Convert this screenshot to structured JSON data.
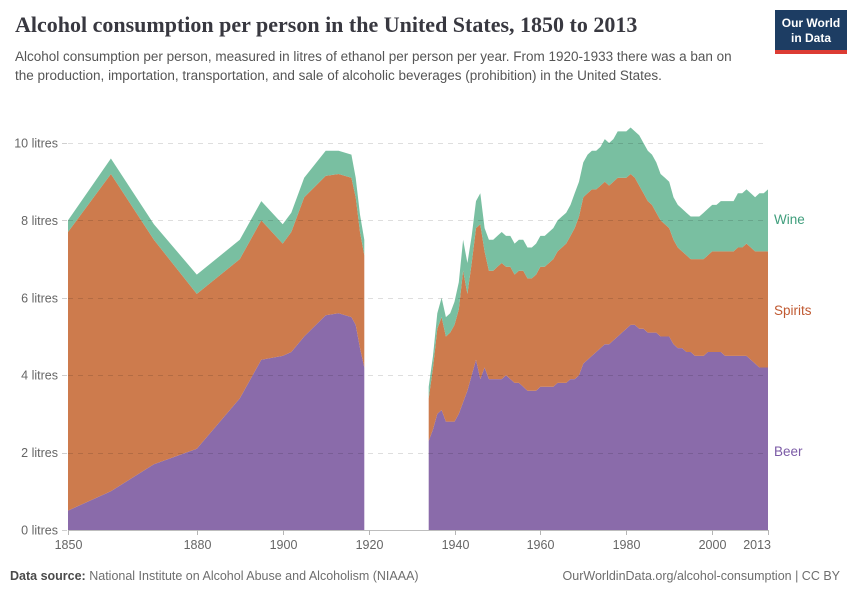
{
  "header": {
    "title": "Alcohol consumption per person in the United States, 1850 to 2013",
    "subtitle": "Alcohol consumption per person, measured in litres of ethanol per person per year. From 1920-1933 there was a ban on the production, importation, transportation, and sale of alcoholic beverages (prohibition) in the United States."
  },
  "logo": {
    "line1": "Our World",
    "line2": "in Data",
    "bg_color": "#1d3d63",
    "bar_color": "#dc3c34"
  },
  "footer": {
    "source_label": "Data source:",
    "source_value": "National Institute on Alcohol Abuse and Alcoholism (NIAAA)",
    "credit": "OurWorldinData.org/alcohol-consumption | CC BY"
  },
  "chart_data": {
    "type": "area",
    "stacked": true,
    "title": "Alcohol consumption per person in the United States, 1850 to 2013",
    "unit": "litres of ethanol per person per year",
    "x_domain": [
      1850,
      2013
    ],
    "y_domain": [
      0,
      10
    ],
    "x_ticks": [
      1850,
      1880,
      1900,
      1920,
      1940,
      1960,
      1980,
      2000,
      2013
    ],
    "y_ticks": [
      {
        "value": 0,
        "label": "0 litres"
      },
      {
        "value": 2,
        "label": "2 litres"
      },
      {
        "value": 4,
        "label": "4 litres"
      },
      {
        "value": 6,
        "label": "6 litres"
      },
      {
        "value": 8,
        "label": "8 litres"
      },
      {
        "value": 10,
        "label": "10 litres"
      }
    ],
    "grid": "dashed",
    "legend_position": "right",
    "data_gap": {
      "from": 1920,
      "to": 1933,
      "reason": "prohibition — no data shown"
    },
    "series": [
      {
        "name": "Beer",
        "fill": "#8a6baa",
        "label_color": "#7b5aa6"
      },
      {
        "name": "Spirits",
        "fill": "#cd7b4d",
        "label_color": "#c05a32"
      },
      {
        "name": "Wine",
        "fill": "#79bfa1",
        "label_color": "#3f9e7c"
      }
    ],
    "segments": [
      {
        "years": [
          1850,
          1860,
          1870,
          1880,
          1890,
          1895,
          1900,
          1902,
          1905,
          1910,
          1913,
          1916,
          1917,
          1918,
          1919
        ],
        "values": {
          "Beer": [
            0.5,
            1.0,
            1.7,
            2.1,
            3.4,
            4.4,
            4.5,
            4.6,
            5.0,
            5.55,
            5.6,
            5.5,
            5.3,
            4.7,
            4.2
          ],
          "Spirits": [
            7.2,
            8.2,
            5.8,
            4.0,
            3.6,
            3.6,
            2.9,
            3.1,
            3.6,
            3.6,
            3.6,
            3.6,
            3.3,
            3.0,
            2.9
          ],
          "Wine": [
            0.3,
            0.4,
            0.4,
            0.5,
            0.5,
            0.5,
            0.5,
            0.5,
            0.5,
            0.65,
            0.6,
            0.6,
            0.5,
            0.45,
            0.4
          ]
        }
      },
      {
        "years": [
          1934,
          1935,
          1936,
          1937,
          1938,
          1939,
          1940,
          1941,
          1942,
          1943,
          1944,
          1945,
          1946,
          1947,
          1948,
          1949,
          1950,
          1951,
          1952,
          1953,
          1954,
          1955,
          1956,
          1957,
          1958,
          1959,
          1960,
          1961,
          1962,
          1963,
          1964,
          1965,
          1966,
          1967,
          1968,
          1969,
          1970,
          1971,
          1972,
          1973,
          1974,
          1975,
          1976,
          1977,
          1978,
          1979,
          1980,
          1981,
          1982,
          1983,
          1984,
          1985,
          1986,
          1987,
          1988,
          1989,
          1990,
          1991,
          1992,
          1993,
          1994,
          1995,
          1996,
          1997,
          1998,
          1999,
          2000,
          2001,
          2002,
          2003,
          2004,
          2005,
          2006,
          2007,
          2008,
          2009,
          2010,
          2011,
          2012,
          2013
        ],
        "values": {
          "Beer": [
            2.3,
            2.6,
            3.0,
            3.1,
            2.8,
            2.8,
            2.8,
            3.0,
            3.3,
            3.6,
            4.0,
            4.4,
            3.9,
            4.2,
            3.9,
            3.9,
            3.9,
            3.9,
            4.0,
            3.9,
            3.8,
            3.8,
            3.7,
            3.6,
            3.6,
            3.6,
            3.7,
            3.7,
            3.7,
            3.7,
            3.8,
            3.8,
            3.8,
            3.9,
            3.9,
            4.0,
            4.3,
            4.4,
            4.5,
            4.6,
            4.7,
            4.8,
            4.8,
            4.9,
            5.0,
            5.1,
            5.2,
            5.3,
            5.3,
            5.2,
            5.2,
            5.1,
            5.1,
            5.1,
            5.0,
            5.0,
            5.0,
            4.8,
            4.7,
            4.7,
            4.6,
            4.6,
            4.5,
            4.5,
            4.5,
            4.6,
            4.6,
            4.6,
            4.6,
            4.5,
            4.5,
            4.5,
            4.5,
            4.5,
            4.5,
            4.4,
            4.3,
            4.2,
            4.2,
            4.2
          ],
          "Spirits": [
            1.1,
            1.6,
            2.2,
            2.4,
            2.2,
            2.3,
            2.5,
            2.7,
            3.4,
            2.5,
            2.9,
            3.4,
            4.0,
            3.0,
            2.8,
            2.8,
            2.9,
            3.0,
            2.8,
            2.9,
            2.8,
            2.9,
            3.0,
            2.9,
            2.9,
            3.0,
            3.1,
            3.1,
            3.2,
            3.3,
            3.4,
            3.5,
            3.6,
            3.7,
            3.9,
            4.1,
            4.3,
            4.3,
            4.3,
            4.2,
            4.2,
            4.2,
            4.1,
            4.1,
            4.1,
            4.0,
            3.9,
            3.9,
            3.8,
            3.7,
            3.5,
            3.4,
            3.3,
            3.1,
            3.0,
            2.9,
            2.8,
            2.7,
            2.6,
            2.5,
            2.5,
            2.4,
            2.5,
            2.5,
            2.5,
            2.5,
            2.6,
            2.6,
            2.6,
            2.7,
            2.7,
            2.7,
            2.8,
            2.8,
            2.9,
            2.9,
            2.9,
            3.0,
            3.0,
            3.0
          ],
          "Wine": [
            0.3,
            0.3,
            0.4,
            0.5,
            0.5,
            0.5,
            0.6,
            0.7,
            0.8,
            0.8,
            0.7,
            0.7,
            0.8,
            0.6,
            0.8,
            0.8,
            0.8,
            0.8,
            0.8,
            0.8,
            0.8,
            0.8,
            0.8,
            0.8,
            0.8,
            0.8,
            0.8,
            0.8,
            0.8,
            0.8,
            0.8,
            0.8,
            0.8,
            0.8,
            0.9,
            0.9,
            0.9,
            1.0,
            1.0,
            1.0,
            1.0,
            1.1,
            1.1,
            1.1,
            1.2,
            1.2,
            1.2,
            1.2,
            1.2,
            1.3,
            1.3,
            1.3,
            1.3,
            1.3,
            1.2,
            1.2,
            1.2,
            1.1,
            1.1,
            1.1,
            1.1,
            1.1,
            1.1,
            1.1,
            1.2,
            1.2,
            1.2,
            1.2,
            1.3,
            1.3,
            1.3,
            1.3,
            1.4,
            1.4,
            1.4,
            1.4,
            1.4,
            1.5,
            1.5,
            1.6
          ]
        }
      }
    ]
  }
}
